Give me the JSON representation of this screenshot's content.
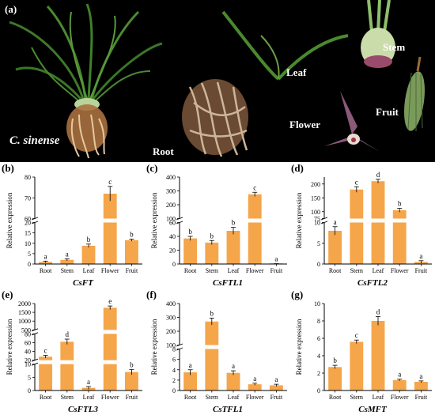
{
  "figure": {
    "photo": {
      "letter": "(a)",
      "species": "C. sinense",
      "labels": {
        "root": "Root",
        "leaf": "Leaf",
        "stem": "Stem",
        "flower": "Flower",
        "fruit": "Fruit"
      }
    },
    "colors": {
      "bar": "#f5a54a",
      "axis": "#000000",
      "background": "#000000"
    }
  },
  "chart_data": [
    {
      "id": "b",
      "letter": "(b)",
      "type": "bar",
      "title": "CsFT",
      "ylabel": "Relative expression",
      "categories": [
        "Root",
        "Stem",
        "Leaf",
        "Flower",
        "Fruit"
      ],
      "values": [
        1.0,
        2.0,
        8.8,
        72.0,
        11.5
      ],
      "errors": [
        0.4,
        0.5,
        0.8,
        3.5,
        0.5
      ],
      "letters": [
        "a",
        "a",
        "b",
        "c",
        "b"
      ],
      "segments": [
        {
          "min": 0,
          "max": 20,
          "ticks": [
            0,
            5,
            10,
            15,
            20
          ]
        },
        {
          "min": 60,
          "max": 80,
          "ticks": [
            60,
            70,
            80
          ]
        }
      ]
    },
    {
      "id": "c",
      "letter": "(c)",
      "type": "bar",
      "title": "CsFTL1",
      "ylabel": "Relative expression",
      "categories": [
        "Root",
        "Stem",
        "Leaf",
        "Flower",
        "Fruit"
      ],
      "values": [
        37,
        31,
        48,
        275,
        0.3
      ],
      "errors": [
        3,
        3,
        5,
        15,
        0.2
      ],
      "letters": [
        "b",
        "b",
        "b",
        "c",
        "a"
      ],
      "segments": [
        {
          "min": 0,
          "max": 60,
          "ticks": [
            0,
            20,
            40,
            60
          ]
        },
        {
          "min": 100,
          "max": 400,
          "ticks": [
            100,
            200,
            300,
            400
          ]
        }
      ]
    },
    {
      "id": "d",
      "letter": "(d)",
      "type": "bar",
      "title": "CsFTL2",
      "ylabel": "Relative expression",
      "categories": [
        "Root",
        "Stem",
        "Leaf",
        "Flower",
        "Fruit"
      ],
      "values": [
        8,
        180,
        210,
        105,
        0.5
      ],
      "errors": [
        1,
        10,
        7,
        7,
        0.3
      ],
      "letters": [
        "a",
        "c",
        "d",
        "b",
        "a"
      ],
      "segments": [
        {
          "min": 0,
          "max": 10,
          "ticks": [
            0,
            5,
            10
          ]
        },
        {
          "min": 75,
          "max": 225,
          "ticks": [
            75,
            100,
            150,
            200
          ]
        }
      ]
    },
    {
      "id": "e",
      "letter": "(e)",
      "type": "bar",
      "title": "CsFTL3",
      "ylabel": "Relative expression",
      "categories": [
        "Root",
        "Stem",
        "Leaf",
        "Flower",
        "Fruit"
      ],
      "values": [
        28,
        62,
        1,
        1760,
        7
      ],
      "errors": [
        3,
        6,
        0.5,
        100,
        1
      ],
      "letters": [
        "c",
        "d",
        "a",
        "e",
        "b"
      ],
      "segments": [
        {
          "min": 0,
          "max": 10,
          "ticks": [
            0,
            5,
            10
          ]
        },
        {
          "min": 20,
          "max": 80,
          "ticks": [
            20,
            40,
            60,
            80
          ]
        },
        {
          "min": 500,
          "max": 2000,
          "ticks": [
            500,
            1000,
            1500,
            2000
          ]
        }
      ]
    },
    {
      "id": "f",
      "letter": "(f)",
      "type": "bar",
      "title": "CsTFL1",
      "ylabel": "Relative expression",
      "categories": [
        "Root",
        "Stem",
        "Leaf",
        "Flower",
        "Fruit"
      ],
      "values": [
        3.5,
        270,
        3.4,
        1.2,
        1.0
      ],
      "errors": [
        0.5,
        25,
        0.4,
        0.2,
        0.2
      ],
      "letters": [
        "a",
        "b",
        "a",
        "a",
        "a"
      ],
      "segments": [
        {
          "min": 0,
          "max": 8,
          "ticks": [
            0,
            2,
            4,
            6,
            8
          ]
        },
        {
          "min": 100,
          "max": 400,
          "ticks": [
            100,
            200,
            300,
            400
          ]
        }
      ]
    },
    {
      "id": "g",
      "letter": "(g)",
      "type": "bar",
      "title": "CsMFT",
      "ylabel": "Relative expression",
      "categories": [
        "Root",
        "Stem",
        "Leaf",
        "Flower",
        "Fruit"
      ],
      "values": [
        2.7,
        5.6,
        8.0,
        1.2,
        1.0
      ],
      "errors": [
        0.2,
        0.2,
        0.5,
        0.1,
        0.1
      ],
      "letters": [
        "b",
        "c",
        "d",
        "a",
        "a"
      ],
      "segments": [
        {
          "min": 0,
          "max": 10,
          "ticks": [
            0,
            2,
            4,
            6,
            8,
            10
          ]
        }
      ]
    }
  ]
}
